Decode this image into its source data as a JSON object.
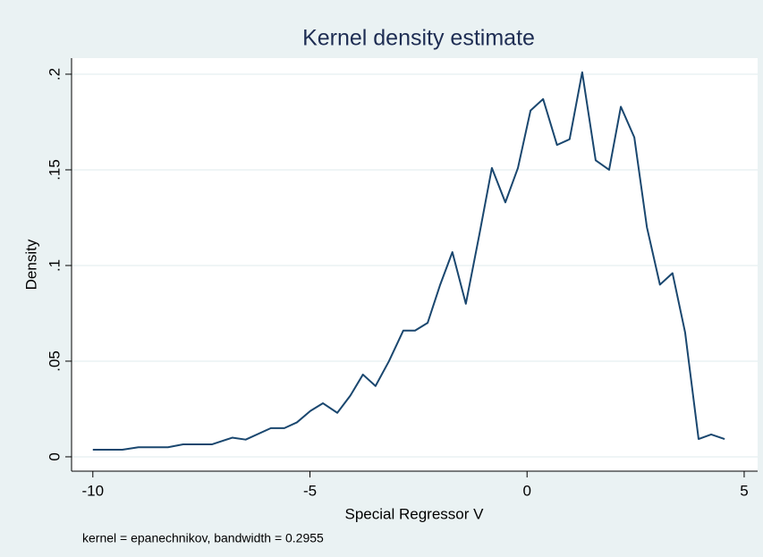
{
  "chart_data": {
    "type": "line",
    "title": "Kernel density estimate",
    "x_label": "Special Regressor V",
    "y_label": "Density",
    "note": "kernel = epanechnikov, bandwidth = 0.2955",
    "x": [
      -10,
      -9.32,
      -8.95,
      -8.27,
      -7.92,
      -7.26,
      -6.79,
      -6.48,
      -5.9,
      -5.59,
      -5.3,
      -4.99,
      -4.7,
      -4.37,
      -4.07,
      -3.78,
      -3.49,
      -3.18,
      -2.85,
      -2.58,
      -2.29,
      -2.0,
      -1.72,
      -1.41,
      -1.1,
      -0.81,
      -0.5,
      -0.21,
      0.08,
      0.37,
      0.69,
      0.98,
      1.27,
      1.58,
      1.89,
      2.16,
      2.47,
      2.76,
      3.06,
      3.35,
      3.64,
      3.95,
      4.24,
      4.55
    ],
    "series": [
      {
        "name": "Density",
        "color": "#1a476f",
        "values": [
          0.0037,
          0.0037,
          0.005,
          0.005,
          0.0065,
          0.0065,
          0.01,
          0.009,
          0.015,
          0.015,
          0.018,
          0.024,
          0.028,
          0.023,
          0.032,
          0.043,
          0.037,
          0.05,
          0.066,
          0.066,
          0.07,
          0.09,
          0.107,
          0.08,
          0.116,
          0.151,
          0.133,
          0.151,
          0.181,
          0.187,
          0.163,
          0.166,
          0.201,
          0.155,
          0.15,
          0.183,
          0.167,
          0.12,
          0.09,
          0.096,
          0.065,
          0.0093,
          0.0117,
          0.0093
        ]
      }
    ],
    "xlim": [
      -10.49,
      5.31
    ],
    "ylim": [
      -0.0075,
      0.2084
    ],
    "xticks": [
      -10,
      -5,
      0,
      5
    ],
    "yticks": [
      0,
      {
        "value": 0.05,
        "label": ".05"
      },
      {
        "value": 0.1,
        "label": ".1"
      },
      {
        "value": 0.15,
        "label": ".15"
      },
      {
        "value": 0.2,
        "label": ".2"
      }
    ],
    "grid": true
  }
}
